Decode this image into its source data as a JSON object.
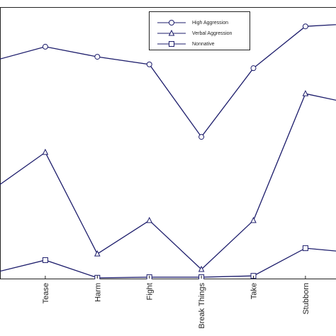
{
  "chart_data": {
    "type": "line",
    "categories": [
      null,
      "Tease",
      "Harm",
      "Fight",
      "Break Things",
      "Take",
      "Stubborn",
      null
    ],
    "series": [
      {
        "name": "High Aggression",
        "color": "#1c1c6b",
        "marker": "circle",
        "values": [
          80.2,
          85.4,
          81.7,
          78.9,
          52.2,
          77.5,
          92.9,
          94.0
        ]
      },
      {
        "name": "Verbal Aggression",
        "color": "#1c1c6b",
        "marker": "triangle",
        "values": [
          32.9,
          46.5,
          9.1,
          21.4,
          3.4,
          21.4,
          68.1,
          64.0
        ]
      },
      {
        "name": "Nonnative",
        "color": "#1c1c6b",
        "marker": "square",
        "values": [
          2.1,
          6.8,
          0.3,
          0.5,
          0.5,
          1.0,
          11.2,
          9.4
        ]
      }
    ],
    "ylim": [
      0,
      100
    ],
    "legend": "upper-center"
  }
}
